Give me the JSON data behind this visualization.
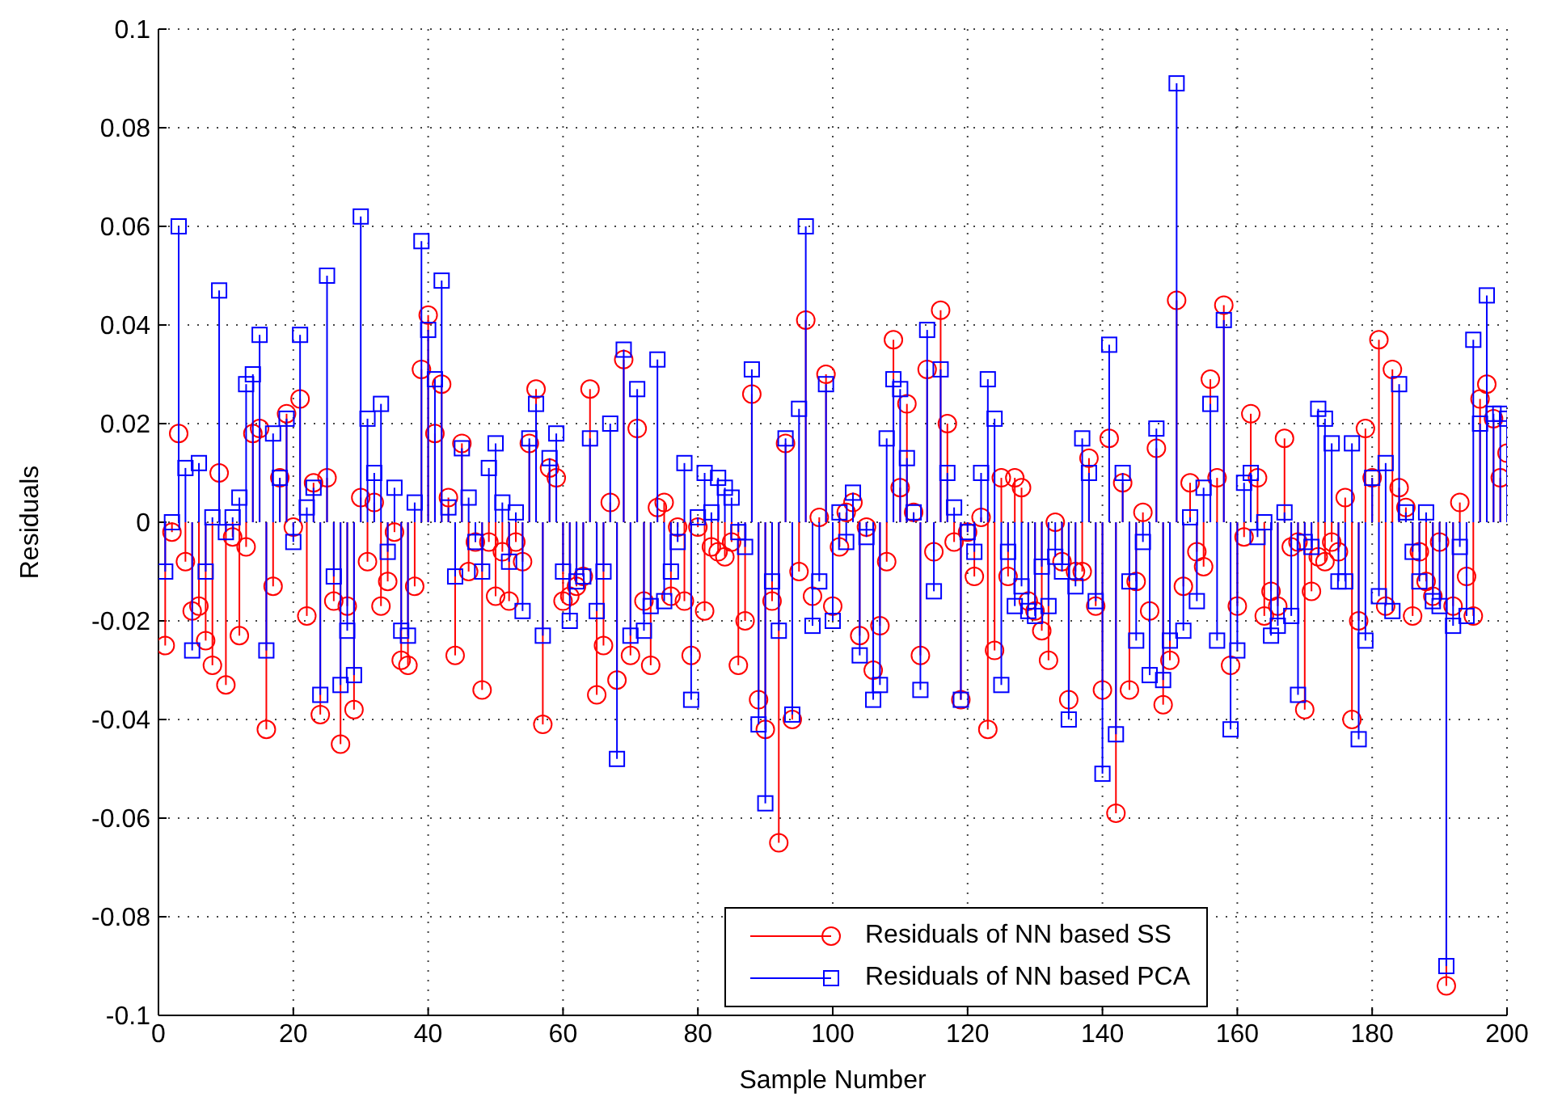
{
  "chart_data": {
    "type": "lollipop",
    "xlabel": "Sample Number",
    "ylabel": "Residuals",
    "xlim": [
      0,
      200
    ],
    "xticks": [
      0,
      20,
      40,
      60,
      80,
      100,
      120,
      140,
      160,
      180,
      200
    ],
    "ylim": [
      -0.1,
      0.1
    ],
    "yticks": [
      -0.1,
      -0.08,
      -0.06,
      -0.04,
      -0.02,
      0,
      0.02,
      0.04,
      0.06,
      0.08,
      0.1
    ],
    "grid": true,
    "legend": "bottom",
    "x": [
      1,
      2,
      3,
      4,
      5,
      6,
      7,
      8,
      9,
      10,
      11,
      12,
      13,
      14,
      15,
      16,
      17,
      18,
      19,
      20,
      21,
      22,
      23,
      24,
      25,
      26,
      27,
      28,
      29,
      30,
      31,
      32,
      33,
      34,
      35,
      36,
      37,
      38,
      39,
      40,
      41,
      42,
      43,
      44,
      45,
      46,
      47,
      48,
      49,
      50,
      51,
      52,
      53,
      54,
      55,
      56,
      57,
      58,
      59,
      60,
      61,
      62,
      63,
      64,
      65,
      66,
      67,
      68,
      69,
      70,
      71,
      72,
      73,
      74,
      75,
      76,
      77,
      78,
      79,
      80,
      81,
      82,
      83,
      84,
      85,
      86,
      87,
      88,
      89,
      90,
      91,
      92,
      93,
      94,
      95,
      96,
      97,
      98,
      99,
      100,
      101,
      102,
      103,
      104,
      105,
      106,
      107,
      108,
      109,
      110,
      111,
      112,
      113,
      114,
      115,
      116,
      117,
      118,
      119,
      120,
      121,
      122,
      123,
      124,
      125,
      126,
      127,
      128,
      129,
      130,
      131,
      132,
      133,
      134,
      135,
      136,
      137,
      138,
      139,
      140,
      141,
      142,
      143,
      144,
      145,
      146,
      147,
      148,
      149,
      150,
      151,
      152,
      153,
      154,
      155,
      156,
      157,
      158,
      159,
      160,
      161,
      162,
      163,
      164,
      165,
      166,
      167,
      168,
      169,
      170,
      171,
      172,
      173,
      174,
      175,
      176,
      177,
      178,
      179,
      180,
      181,
      182,
      183,
      184,
      185,
      186,
      187,
      188,
      189,
      190,
      191,
      192,
      193,
      194,
      195,
      196,
      197,
      198,
      199,
      200
    ],
    "series": [
      {
        "name": "Residuals of NN based SS",
        "color": "#ff0000",
        "marker": "circle",
        "values": [
          -0.025,
          -0.002,
          0.018,
          -0.008,
          -0.018,
          -0.017,
          -0.024,
          -0.029,
          0.01,
          -0.033,
          -0.003,
          -0.023,
          -0.005,
          0.018,
          0.019,
          -0.042,
          -0.013,
          0.009,
          0.022,
          -0.001,
          0.025,
          -0.019,
          0.008,
          -0.039,
          0.009,
          -0.016,
          -0.045,
          -0.017,
          -0.038,
          0.005,
          -0.008,
          0.004,
          -0.017,
          -0.012,
          -0.002,
          -0.028,
          -0.029,
          -0.013,
          0.031,
          0.042,
          0.018,
          0.028,
          0.005,
          -0.027,
          0.016,
          -0.01,
          -0.004,
          -0.034,
          -0.004,
          -0.015,
          -0.006,
          -0.016,
          -0.004,
          -0.008,
          0.016,
          0.027,
          -0.041,
          0.011,
          0.009,
          -0.016,
          -0.015,
          -0.013,
          -0.011,
          0.027,
          -0.035,
          -0.025,
          0.004,
          -0.032,
          0.033,
          -0.027,
          0.019,
          -0.016,
          -0.029,
          0.003,
          0.004,
          -0.015,
          -0.001,
          -0.016,
          -0.027,
          -0.001,
          -0.018,
          -0.005,
          -0.006,
          -0.007,
          -0.004,
          -0.029,
          -0.02,
          0.026,
          -0.036,
          -0.042,
          -0.016,
          -0.065,
          0.016,
          -0.04,
          -0.01,
          0.041,
          -0.015,
          0.001,
          0.03,
          -0.017,
          -0.005,
          0.002,
          0.004,
          -0.023,
          -0.001,
          -0.03,
          -0.021,
          -0.008,
          0.037,
          0.007,
          0.024,
          0.002,
          -0.027,
          0.031,
          -0.006,
          0.043,
          0.02,
          -0.004,
          -0.036,
          -0.002,
          -0.011,
          0.001,
          -0.042,
          -0.026,
          0.009,
          -0.011,
          0.009,
          0.007,
          -0.016,
          -0.018,
          -0.022,
          -0.028,
          0.0,
          -0.008,
          -0.036,
          -0.01,
          -0.01,
          0.013,
          -0.017,
          -0.034,
          0.017,
          -0.059,
          0.008,
          -0.034,
          -0.012,
          0.002,
          -0.018,
          0.015,
          -0.037,
          -0.028,
          0.045,
          -0.013,
          0.008,
          -0.006,
          -0.009,
          0.029,
          0.009,
          0.044,
          -0.029,
          -0.017,
          -0.003,
          0.022,
          0.009,
          -0.019,
          -0.014,
          -0.017,
          0.017,
          -0.005,
          -0.004,
          -0.038,
          -0.014,
          -0.007,
          -0.008,
          -0.004,
          -0.006,
          0.005,
          -0.04,
          -0.02,
          0.019,
          0.009,
          0.037,
          -0.017,
          0.031,
          0.007,
          0.003,
          -0.019,
          -0.006,
          -0.012,
          -0.015,
          -0.004,
          -0.094,
          -0.017,
          0.004,
          -0.011,
          -0.019,
          0.025,
          0.028,
          0.021,
          0.009,
          0.014
        ]
      },
      {
        "name": "Residuals of NN based PCA",
        "color": "#0000ff",
        "marker": "square",
        "values": [
          -0.01,
          0.0,
          0.06,
          0.011,
          -0.026,
          0.012,
          -0.01,
          0.001,
          0.047,
          -0.002,
          0.001,
          0.005,
          0.028,
          0.03,
          0.038,
          -0.026,
          0.018,
          0.009,
          0.021,
          -0.004,
          0.038,
          0.003,
          0.007,
          -0.035,
          0.05,
          -0.011,
          -0.033,
          -0.022,
          -0.031,
          0.062,
          0.021,
          0.01,
          0.024,
          -0.006,
          0.007,
          -0.022,
          -0.023,
          0.004,
          0.057,
          0.039,
          0.029,
          0.049,
          0.003,
          -0.011,
          0.015,
          0.005,
          -0.004,
          -0.01,
          0.011,
          0.016,
          0.004,
          -0.008,
          0.002,
          -0.018,
          0.017,
          0.024,
          -0.023,
          0.013,
          0.018,
          -0.01,
          -0.02,
          -0.012,
          -0.011,
          0.017,
          -0.018,
          -0.01,
          0.02,
          -0.048,
          0.035,
          -0.023,
          0.027,
          -0.022,
          -0.017,
          0.033,
          -0.016,
          -0.01,
          -0.004,
          0.012,
          -0.036,
          0.001,
          0.01,
          0.002,
          0.009,
          0.007,
          0.005,
          -0.002,
          -0.005,
          0.031,
          -0.041,
          -0.057,
          -0.012,
          -0.022,
          0.017,
          -0.039,
          0.023,
          0.06,
          -0.021,
          -0.012,
          0.028,
          -0.02,
          0.002,
          -0.004,
          0.006,
          -0.027,
          -0.003,
          -0.036,
          -0.033,
          0.017,
          0.029,
          0.027,
          0.013,
          0.002,
          -0.034,
          0.039,
          -0.014,
          0.031,
          0.01,
          0.003,
          -0.036,
          -0.002,
          -0.006,
          0.01,
          0.029,
          0.021,
          -0.033,
          -0.006,
          -0.017,
          -0.013,
          -0.018,
          -0.019,
          -0.009,
          -0.017,
          -0.007,
          -0.01,
          -0.04,
          -0.013,
          0.017,
          0.01,
          -0.016,
          -0.051,
          0.036,
          -0.043,
          0.01,
          -0.012,
          -0.024,
          -0.004,
          -0.031,
          0.019,
          -0.032,
          -0.024,
          0.089,
          -0.022,
          0.001,
          -0.016,
          0.007,
          0.024,
          -0.024,
          0.041,
          -0.042,
          -0.026,
          0.008,
          0.01,
          -0.003,
          0.0,
          -0.023,
          -0.021,
          0.002,
          -0.019,
          -0.035,
          -0.004,
          -0.005,
          0.023,
          0.021,
          0.016,
          -0.012,
          -0.012,
          0.016,
          -0.044,
          -0.024,
          0.009,
          -0.015,
          0.012,
          -0.018,
          0.028,
          0.002,
          -0.006,
          -0.012,
          0.002,
          -0.016,
          -0.017,
          -0.09,
          -0.021,
          -0.005,
          -0.019,
          0.037,
          0.02,
          0.046,
          0.022,
          0.022,
          0.021
        ]
      }
    ]
  }
}
